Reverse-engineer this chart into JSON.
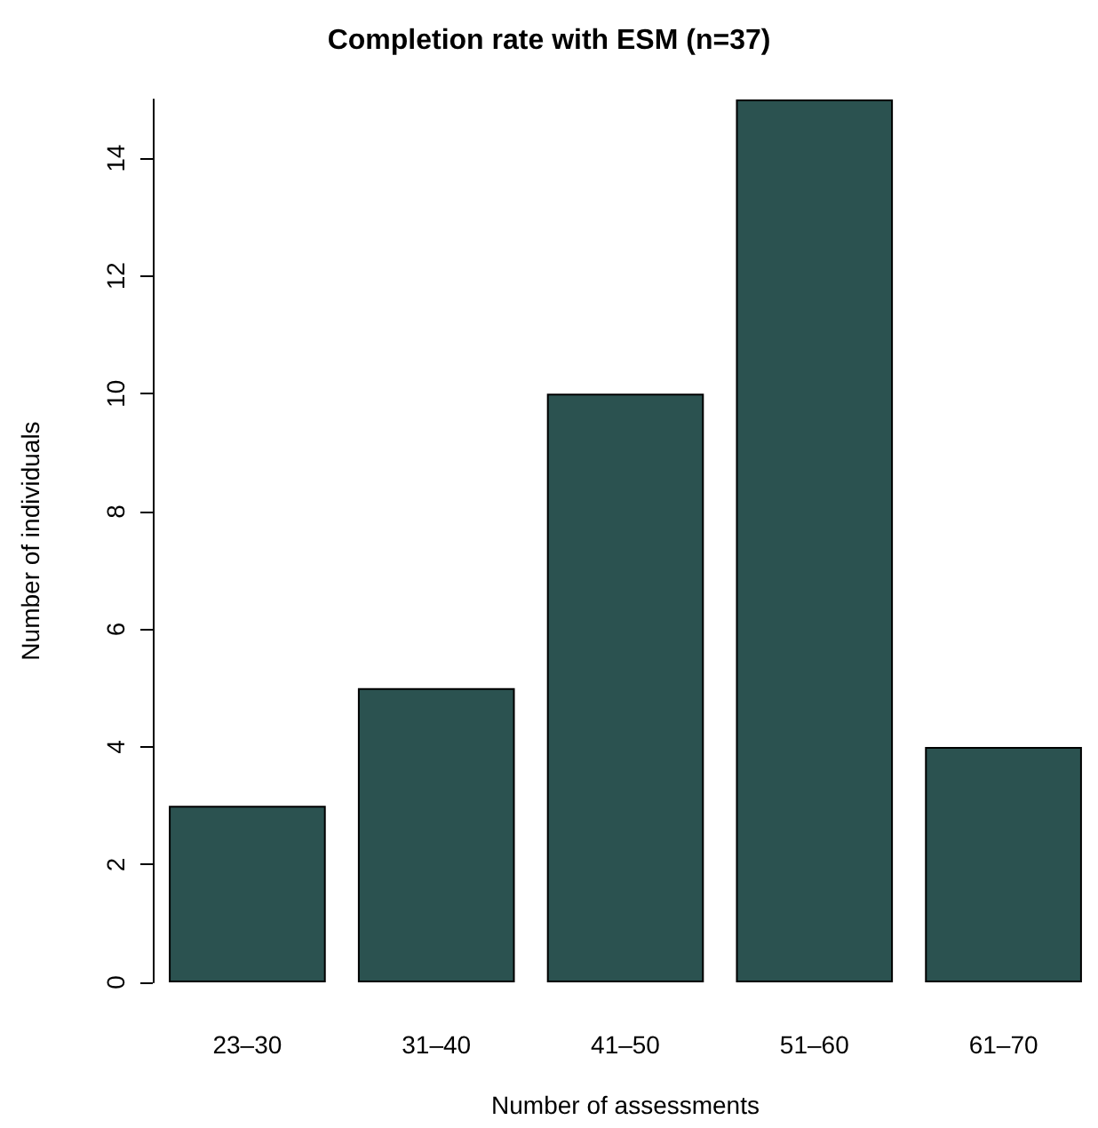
{
  "chart_data": {
    "type": "bar",
    "title": "Completion rate with ESM (n=37)",
    "xlabel": "Number of assessments",
    "ylabel": "Number of individuals",
    "categories": [
      "23–30",
      "31–40",
      "41–50",
      "51–60",
      "61–70"
    ],
    "values": [
      3,
      5,
      10,
      15,
      4
    ],
    "color": "#2b5250",
    "ylim": [
      0,
      15
    ],
    "yticks": [
      0,
      2,
      4,
      6,
      8,
      10,
      12,
      14
    ],
    "grid": false
  }
}
